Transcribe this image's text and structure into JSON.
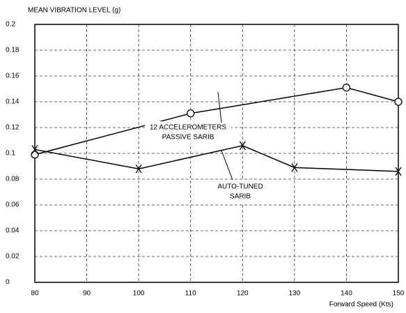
{
  "chart_data": {
    "type": "line",
    "ylabel": "MEAN VIBRATION LEVEL (g)",
    "xlabel": "Forward Speed (Kts)",
    "xlim": [
      80,
      150
    ],
    "xticks": [
      80,
      90,
      100,
      110,
      120,
      130,
      140,
      150
    ],
    "ylim": [
      0,
      0.2
    ],
    "yticks": [
      0,
      0.02,
      0.04,
      0.06,
      0.08,
      0.1,
      0.12,
      0.14,
      0.16,
      0.18,
      0.2
    ],
    "grid": true,
    "annotations": [
      [
        "12 ACCELEROMETERS",
        "PASSIVE SARIB"
      ],
      [
        "AUTO-TUNED",
        "SARIB"
      ]
    ],
    "series": [
      {
        "marker": "circle",
        "color": "#000000",
        "x": [
          80,
          110,
          140,
          150
        ],
        "values": [
          0.099,
          0.131,
          0.151,
          0.14
        ]
      },
      {
        "marker": "x",
        "color": "#000000",
        "x": [
          80,
          100,
          120,
          130,
          150
        ],
        "values": [
          0.103,
          0.088,
          0.106,
          0.089,
          0.086
        ]
      }
    ]
  }
}
